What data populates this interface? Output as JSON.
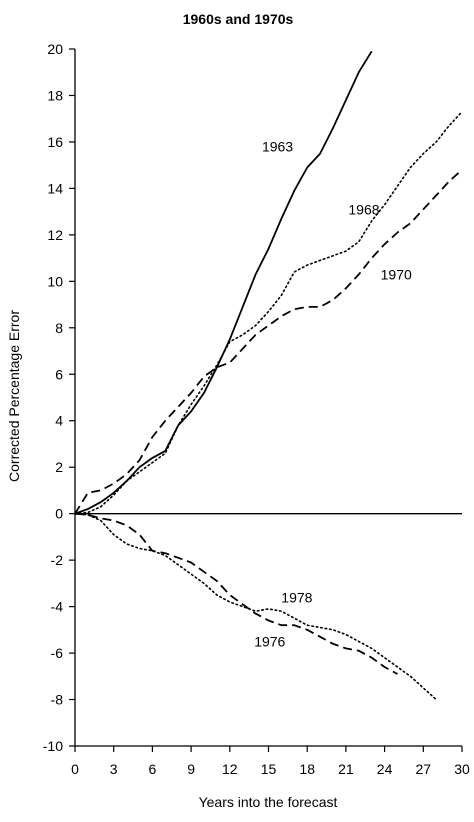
{
  "chart_data": {
    "type": "line",
    "title": "1960s and 1970s",
    "xlabel": "Years into the forecast",
    "ylabel": "Corrected Percentage Error",
    "xlim": [
      0,
      30
    ],
    "ylim": [
      -10,
      20
    ],
    "xticks": [
      0,
      3,
      6,
      9,
      12,
      15,
      18,
      21,
      24,
      27,
      30
    ],
    "yticks": [
      -10,
      -8,
      -6,
      -4,
      -2,
      0,
      2,
      4,
      6,
      8,
      10,
      12,
      14,
      16,
      18,
      20
    ],
    "grid": false,
    "reference_line_y": 0,
    "series": [
      {
        "name": "1963",
        "style": "solid",
        "label_at": [
          15.7,
          15.8
        ],
        "points": [
          [
            0,
            0
          ],
          [
            1,
            0.2
          ],
          [
            2,
            0.5
          ],
          [
            3,
            0.9
          ],
          [
            4,
            1.4
          ],
          [
            5,
            2.0
          ],
          [
            6,
            2.4
          ],
          [
            7,
            2.7
          ],
          [
            8,
            3.8
          ],
          [
            9,
            4.4
          ],
          [
            10,
            5.2
          ],
          [
            11,
            6.3
          ],
          [
            12,
            7.5
          ],
          [
            13,
            8.9
          ],
          [
            14,
            10.3
          ],
          [
            15,
            11.4
          ],
          [
            16,
            12.7
          ],
          [
            17,
            13.9
          ],
          [
            18,
            14.9
          ],
          [
            19,
            15.5
          ],
          [
            20,
            16.6
          ],
          [
            21,
            17.8
          ],
          [
            22,
            19.0
          ],
          [
            23,
            19.9
          ]
        ]
      },
      {
        "name": "1968",
        "style": "dotted",
        "label_at": [
          22.4,
          13.1
        ],
        "points": [
          [
            0,
            0
          ],
          [
            1,
            0.05
          ],
          [
            2,
            0.3
          ],
          [
            3,
            0.8
          ],
          [
            4,
            1.4
          ],
          [
            5,
            1.8
          ],
          [
            6,
            2.2
          ],
          [
            7,
            2.6
          ],
          [
            8,
            3.8
          ],
          [
            9,
            4.7
          ],
          [
            10,
            5.5
          ],
          [
            11,
            6.4
          ],
          [
            12,
            7.4
          ],
          [
            13,
            7.7
          ],
          [
            14,
            8.1
          ],
          [
            15,
            8.7
          ],
          [
            16,
            9.4
          ],
          [
            17,
            10.4
          ],
          [
            18,
            10.7
          ],
          [
            19,
            10.9
          ],
          [
            20,
            11.1
          ],
          [
            21,
            11.3
          ],
          [
            22,
            11.7
          ],
          [
            23,
            12.6
          ],
          [
            24,
            13.3
          ],
          [
            25,
            14.1
          ],
          [
            26,
            14.9
          ],
          [
            27,
            15.5
          ],
          [
            28,
            16.0
          ],
          [
            29,
            16.7
          ],
          [
            30,
            17.3
          ]
        ]
      },
      {
        "name": "1970",
        "style": "dashed",
        "label_at": [
          24.9,
          10.3
        ],
        "points": [
          [
            0,
            0
          ],
          [
            1,
            0.9
          ],
          [
            2,
            1.0
          ],
          [
            3,
            1.3
          ],
          [
            4,
            1.7
          ],
          [
            5,
            2.3
          ],
          [
            6,
            3.3
          ],
          [
            7,
            4.0
          ],
          [
            8,
            4.6
          ],
          [
            9,
            5.2
          ],
          [
            10,
            5.9
          ],
          [
            11,
            6.3
          ],
          [
            12,
            6.5
          ],
          [
            13,
            7.1
          ],
          [
            14,
            7.7
          ],
          [
            15,
            8.1
          ],
          [
            16,
            8.5
          ],
          [
            17,
            8.8
          ],
          [
            18,
            8.9
          ],
          [
            19,
            8.9
          ],
          [
            20,
            9.2
          ],
          [
            21,
            9.7
          ],
          [
            22,
            10.3
          ],
          [
            23,
            11.0
          ],
          [
            24,
            11.6
          ],
          [
            25,
            12.1
          ],
          [
            26,
            12.5
          ],
          [
            27,
            13.1
          ],
          [
            28,
            13.7
          ],
          [
            29,
            14.3
          ],
          [
            30,
            14.8
          ]
        ]
      },
      {
        "name": "1976",
        "style": "dashed",
        "label_at": [
          15.1,
          -5.5
        ],
        "points": [
          [
            0,
            0
          ],
          [
            1,
            -0.05
          ],
          [
            2,
            -0.2
          ],
          [
            3,
            -0.3
          ],
          [
            4,
            -0.5
          ],
          [
            5,
            -0.9
          ],
          [
            6,
            -1.6
          ],
          [
            7,
            -1.7
          ],
          [
            8,
            -1.9
          ],
          [
            9,
            -2.1
          ],
          [
            10,
            -2.5
          ],
          [
            11,
            -2.9
          ],
          [
            12,
            -3.5
          ],
          [
            13,
            -3.9
          ],
          [
            14,
            -4.3
          ],
          [
            15,
            -4.6
          ],
          [
            16,
            -4.8
          ],
          [
            17,
            -4.8
          ],
          [
            18,
            -5.0
          ],
          [
            19,
            -5.3
          ],
          [
            20,
            -5.6
          ],
          [
            21,
            -5.8
          ],
          [
            22,
            -5.9
          ],
          [
            23,
            -6.2
          ],
          [
            24,
            -6.6
          ],
          [
            25,
            -6.9
          ]
        ]
      },
      {
        "name": "1978",
        "style": "dotted",
        "label_at": [
          17.2,
          -3.6
        ],
        "points": [
          [
            0,
            0
          ],
          [
            1,
            -0.05
          ],
          [
            2,
            -0.3
          ],
          [
            3,
            -0.9
          ],
          [
            4,
            -1.3
          ],
          [
            5,
            -1.5
          ],
          [
            6,
            -1.6
          ],
          [
            7,
            -1.8
          ],
          [
            8,
            -2.2
          ],
          [
            9,
            -2.6
          ],
          [
            10,
            -3.0
          ],
          [
            11,
            -3.5
          ],
          [
            12,
            -3.8
          ],
          [
            13,
            -4.0
          ],
          [
            14,
            -4.2
          ],
          [
            15,
            -4.1
          ],
          [
            16,
            -4.2
          ],
          [
            17,
            -4.5
          ],
          [
            18,
            -4.8
          ],
          [
            19,
            -4.9
          ],
          [
            20,
            -5.0
          ],
          [
            21,
            -5.2
          ],
          [
            22,
            -5.5
          ],
          [
            23,
            -5.8
          ],
          [
            24,
            -6.2
          ],
          [
            25,
            -6.6
          ],
          [
            26,
            -7.0
          ],
          [
            27,
            -7.5
          ],
          [
            28,
            -8.0
          ]
        ]
      }
    ]
  }
}
